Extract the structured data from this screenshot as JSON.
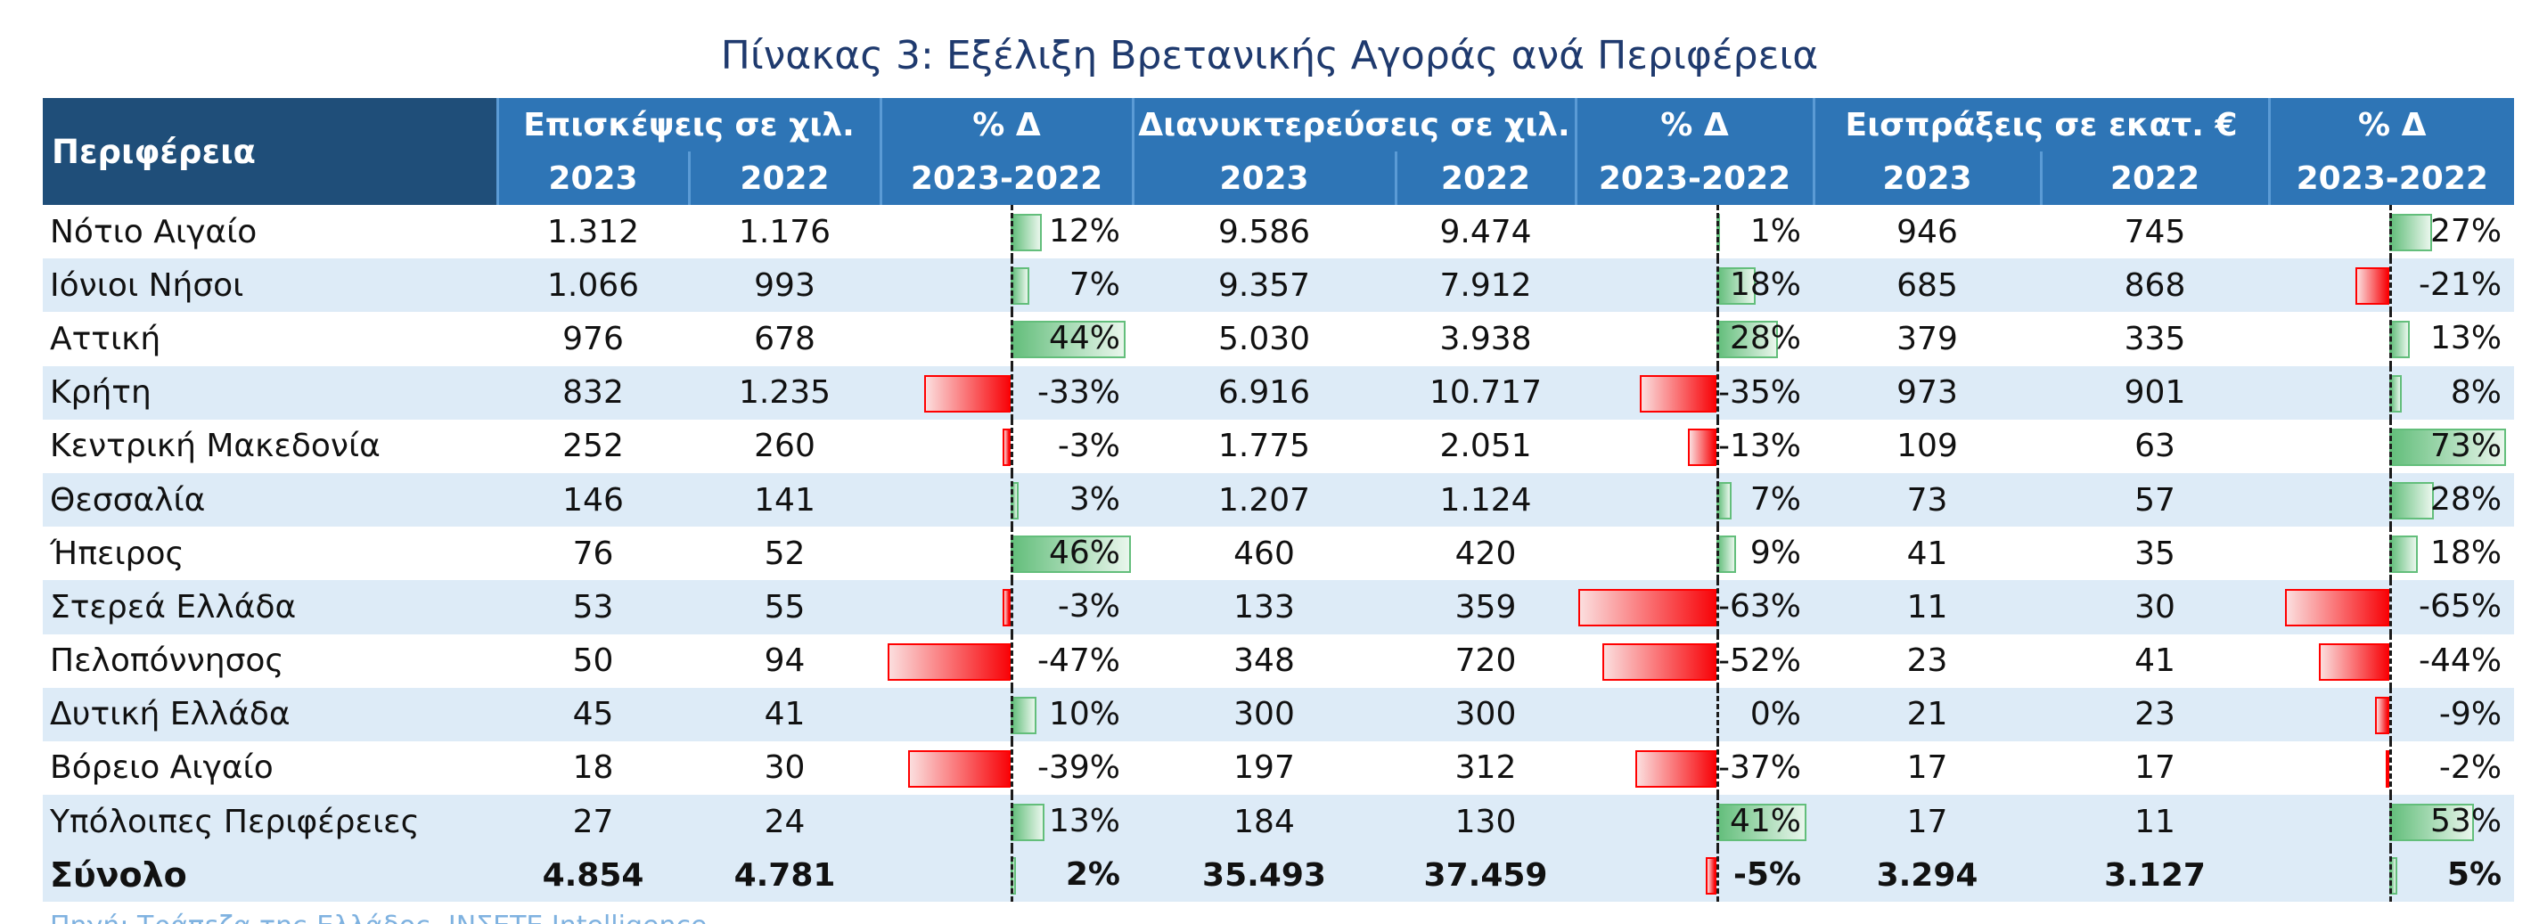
{
  "title": "Πίνακας 3: Εξέλιξη Βρετανικής Αγοράς ανά Περιφέρεια",
  "header": {
    "region": "Περιφέρεια",
    "groups": [
      {
        "label": "Επισκέψεις σε χιλ.",
        "y1": "2023",
        "y2": "2022"
      },
      {
        "label": "% Δ",
        "sub": "2023-2022"
      },
      {
        "label": "Διανυκτερεύσεις σε χιλ.",
        "y1": "2023",
        "y2": "2022"
      },
      {
        "label": "% Δ",
        "sub": "2023-2022"
      },
      {
        "label": "Εισπράξεις σε εκατ.  €",
        "y1": "2023",
        "y2": "2022"
      },
      {
        "label": "% Δ",
        "sub": "2023-2022"
      }
    ]
  },
  "colors": {
    "header": "#2e75b6",
    "header_dark": "#1f4e79",
    "row_alt": "#ddebf7",
    "bar_pos": "#63be7b",
    "bar_neg": "#ff0000",
    "title": "#1f3a6e"
  },
  "pct_scale": {
    "visits": 47,
    "nights": 63,
    "receipts": 73
  },
  "rows": [
    {
      "region": "Νότιο Αιγαίο",
      "v23": "1.312",
      "v22": "1.176",
      "vp": "12%",
      "vpn": 12,
      "n23": "9.586",
      "n22": "9.474",
      "np": "1%",
      "npn": 1,
      "r23": "946",
      "r22": "745",
      "rp": "27%",
      "rpn": 27
    },
    {
      "region": "Ιόνιοι Νήσοι",
      "v23": "1.066",
      "v22": "993",
      "vp": "7%",
      "vpn": 7,
      "n23": "9.357",
      "n22": "7.912",
      "np": "18%",
      "npn": 18,
      "r23": "685",
      "r22": "868",
      "rp": "-21%",
      "rpn": -21
    },
    {
      "region": "Αττική",
      "v23": "976",
      "v22": "678",
      "vp": "44%",
      "vpn": 44,
      "n23": "5.030",
      "n22": "3.938",
      "np": "28%",
      "npn": 28,
      "r23": "379",
      "r22": "335",
      "rp": "13%",
      "rpn": 13
    },
    {
      "region": "Κρήτη",
      "v23": "832",
      "v22": "1.235",
      "vp": "-33%",
      "vpn": -33,
      "n23": "6.916",
      "n22": "10.717",
      "np": "-35%",
      "npn": -35,
      "r23": "973",
      "r22": "901",
      "rp": "8%",
      "rpn": 8
    },
    {
      "region": "Κεντρική Μακεδονία",
      "v23": "252",
      "v22": "260",
      "vp": "-3%",
      "vpn": -3,
      "n23": "1.775",
      "n22": "2.051",
      "np": "-13%",
      "npn": -13,
      "r23": "109",
      "r22": "63",
      "rp": "73%",
      "rpn": 73
    },
    {
      "region": "Θεσσαλία",
      "v23": "146",
      "v22": "141",
      "vp": "3%",
      "vpn": 3,
      "n23": "1.207",
      "n22": "1.124",
      "np": "7%",
      "npn": 7,
      "r23": "73",
      "r22": "57",
      "rp": "28%",
      "rpn": 28
    },
    {
      "region": "Ήπειρος",
      "v23": "76",
      "v22": "52",
      "vp": "46%",
      "vpn": 46,
      "n23": "460",
      "n22": "420",
      "np": "9%",
      "npn": 9,
      "r23": "41",
      "r22": "35",
      "rp": "18%",
      "rpn": 18
    },
    {
      "region": "Στερεά Ελλάδα",
      "v23": "53",
      "v22": "55",
      "vp": "-3%",
      "vpn": -3,
      "n23": "133",
      "n22": "359",
      "np": "-63%",
      "npn": -63,
      "r23": "11",
      "r22": "30",
      "rp": "-65%",
      "rpn": -65
    },
    {
      "region": "Πελοπόννησος",
      "v23": "50",
      "v22": "94",
      "vp": "-47%",
      "vpn": -47,
      "n23": "348",
      "n22": "720",
      "np": "-52%",
      "npn": -52,
      "r23": "23",
      "r22": "41",
      "rp": "-44%",
      "rpn": -44
    },
    {
      "region": "Δυτική Ελλάδα",
      "v23": "45",
      "v22": "41",
      "vp": "10%",
      "vpn": 10,
      "n23": "300",
      "n22": "300",
      "np": "0%",
      "npn": 0,
      "r23": "21",
      "r22": "23",
      "rp": "-9%",
      "rpn": -9
    },
    {
      "region": "Βόρειο Αιγαίο",
      "v23": "18",
      "v22": "30",
      "vp": "-39%",
      "vpn": -39,
      "n23": "197",
      "n22": "312",
      "np": "-37%",
      "npn": -37,
      "r23": "17",
      "r22": "17",
      "rp": "-2%",
      "rpn": -2
    },
    {
      "region": "Υπόλοιπες Περιφέρειες",
      "v23": "27",
      "v22": "24",
      "vp": "13%",
      "vpn": 13,
      "n23": "184",
      "n22": "130",
      "np": "41%",
      "npn": 41,
      "r23": "17",
      "r22": "11",
      "rp": "53%",
      "rpn": 53
    }
  ],
  "total": {
    "region": "Σύνολο",
    "v23": "4.854",
    "v22": "4.781",
    "vp": "2%",
    "vpn": 2,
    "n23": "35.493",
    "n22": "37.459",
    "np": "-5%",
    "npn": -5,
    "r23": "3.294",
    "r22": "3.127",
    "rp": "5%",
    "rpn": 5
  },
  "source": "Πηγή: Τράπεζα της Ελλάδος, ΙΝΣΕΤΕ Intelligence"
}
